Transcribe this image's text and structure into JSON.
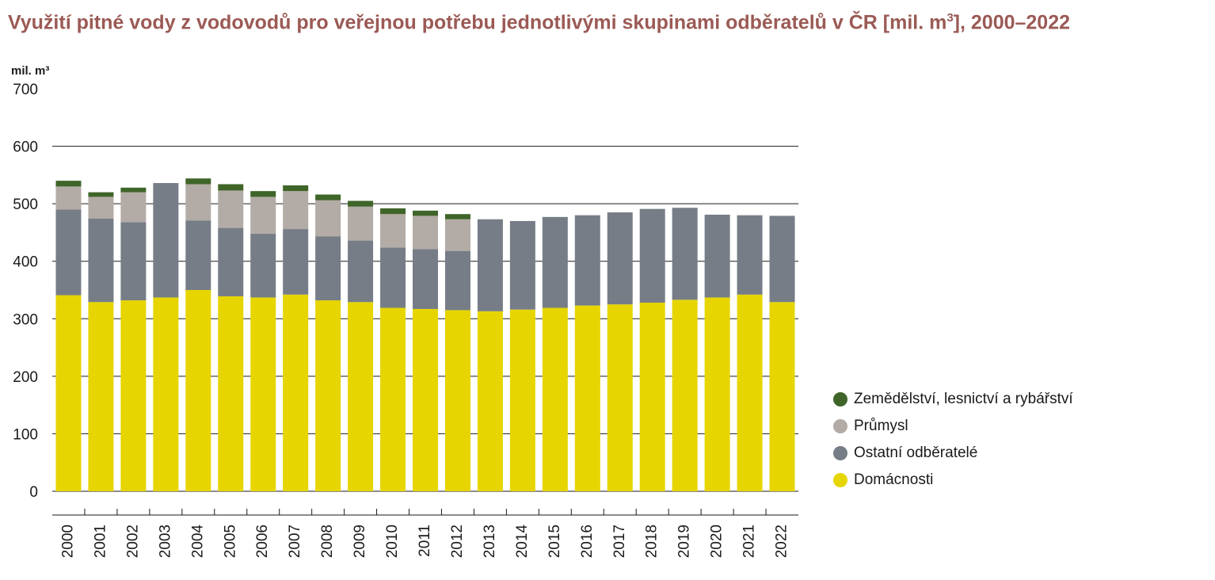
{
  "chart_data": {
    "type": "bar",
    "stacked": true,
    "title": "Využití pitné vody z vodovodů pro veřejnou potřebu jednotlivými skupinami odběratelů v ČR [mil. m³], 2000–2022",
    "title_prefix": "Využití pitné vody z vodovodů pro veřejnou potřebu jednotlivými skupinami odběratelů v ČR [mil. m",
    "title_sup": "3",
    "title_suffix": "], 2000–2022",
    "ylabel": "mil. m³",
    "ylim": [
      0,
      700
    ],
    "yticks": [
      0,
      100,
      200,
      300,
      400,
      500,
      600,
      700
    ],
    "grid": true,
    "legend_position": "right",
    "categories": [
      "2000",
      "2001",
      "2002",
      "2003",
      "2004",
      "2005",
      "2006",
      "2007",
      "2008",
      "2009",
      "2010",
      "2011",
      "2012",
      "2013",
      "2014",
      "2015",
      "2016",
      "2017",
      "2018",
      "2019",
      "2020",
      "2021",
      "2022"
    ],
    "series": [
      {
        "name": "Domácnosti",
        "color": "#e6d500",
        "values": [
          341,
          329,
          332,
          337,
          350,
          339,
          337,
          342,
          332,
          329,
          319,
          317,
          315,
          313,
          316,
          319,
          323,
          325,
          328,
          333,
          337,
          342,
          329
        ]
      },
      {
        "name": "Ostatní odběratelé",
        "color": "#767d87",
        "values": [
          149,
          145,
          136,
          199,
          121,
          119,
          111,
          114,
          111,
          107,
          105,
          104,
          103,
          160,
          154,
          158,
          157,
          160,
          163,
          160,
          144,
          138,
          150
        ]
      },
      {
        "name": "Průmysl",
        "color": "#b3aba5",
        "values": [
          40,
          38,
          52,
          0,
          63,
          65,
          64,
          66,
          63,
          59,
          58,
          58,
          55,
          0,
          0,
          0,
          0,
          0,
          0,
          0,
          0,
          0,
          0
        ]
      },
      {
        "name": "Zemědělství, lesnictví a rybářství",
        "color": "#3f6529",
        "values": [
          10,
          8,
          8,
          0,
          10,
          11,
          10,
          10,
          10,
          10,
          10,
          9,
          9,
          0,
          0,
          0,
          0,
          0,
          0,
          0,
          0,
          0,
          0
        ]
      }
    ]
  }
}
